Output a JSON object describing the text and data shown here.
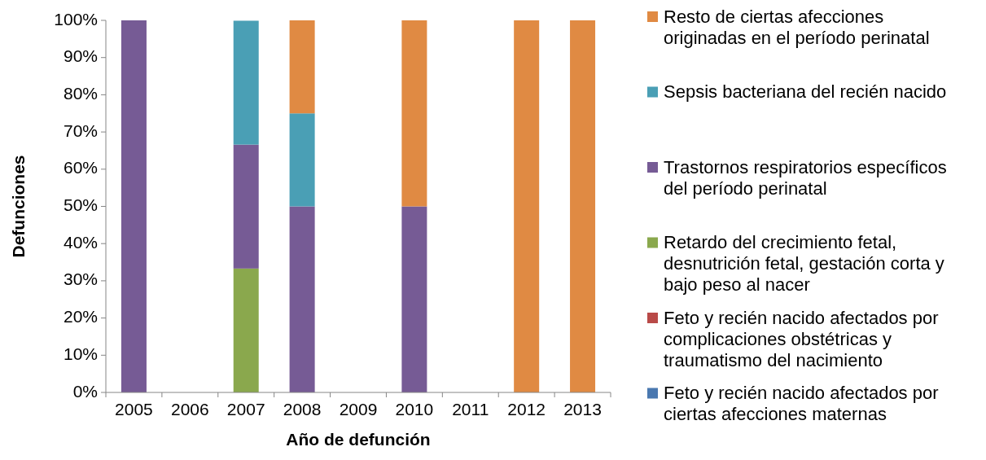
{
  "chart_data": {
    "type": "bar",
    "stacked": true,
    "xlabel": "Año de defunción",
    "ylabel": "Defunciones",
    "categories": [
      "2005",
      "2006",
      "2007",
      "2008",
      "2009",
      "2010",
      "2011",
      "2012",
      "2013"
    ],
    "series": [
      {
        "name": "Feto y recién nacido afectados por ciertas afecciones maternas",
        "color": "#4a78b0",
        "values": [
          null,
          null,
          null,
          null,
          null,
          null,
          null,
          null,
          null
        ]
      },
      {
        "name": "Feto y recién nacido afectados por complicaciones obstétricas y traumatismo del nacimiento",
        "color": "#b94a48",
        "values": [
          null,
          null,
          null,
          null,
          null,
          null,
          null,
          null,
          null
        ]
      },
      {
        "name": "Retardo del crecimiento fetal, desnutrición fetal, gestación corta y bajo peso al nacer",
        "color": "#8aa84d",
        "values": [
          null,
          null,
          33.3,
          null,
          null,
          null,
          null,
          null,
          null
        ]
      },
      {
        "name": "Trastornos respiratorios específicos del período perinatal",
        "color": "#765b95",
        "values": [
          100,
          null,
          33.3,
          50,
          null,
          50,
          null,
          null,
          null
        ]
      },
      {
        "name": "Sepsis bacteriana del recién nacido",
        "color": "#4a9fb5",
        "values": [
          null,
          null,
          33.3,
          25,
          null,
          null,
          null,
          null,
          null
        ]
      },
      {
        "name": "Resto de ciertas afecciones originadas en el período perinatal",
        "color": "#e08a43",
        "values": [
          null,
          null,
          null,
          25,
          null,
          50,
          null,
          100,
          100
        ]
      }
    ],
    "ylim": [
      0,
      100
    ],
    "yticks": [
      {
        "value": 0,
        "label": "0%"
      },
      {
        "value": 10,
        "label": "10%"
      },
      {
        "value": 20,
        "label": "20%"
      },
      {
        "value": 30,
        "label": "30%"
      },
      {
        "value": 40,
        "label": "40%"
      },
      {
        "value": 50,
        "label": "50%"
      },
      {
        "value": 60,
        "label": "60%"
      },
      {
        "value": 70,
        "label": "70%"
      },
      {
        "value": 80,
        "label": "80%"
      },
      {
        "value": 90,
        "label": "90%"
      },
      {
        "value": 100,
        "label": "100%"
      }
    ],
    "grid": false,
    "legend": "right"
  }
}
